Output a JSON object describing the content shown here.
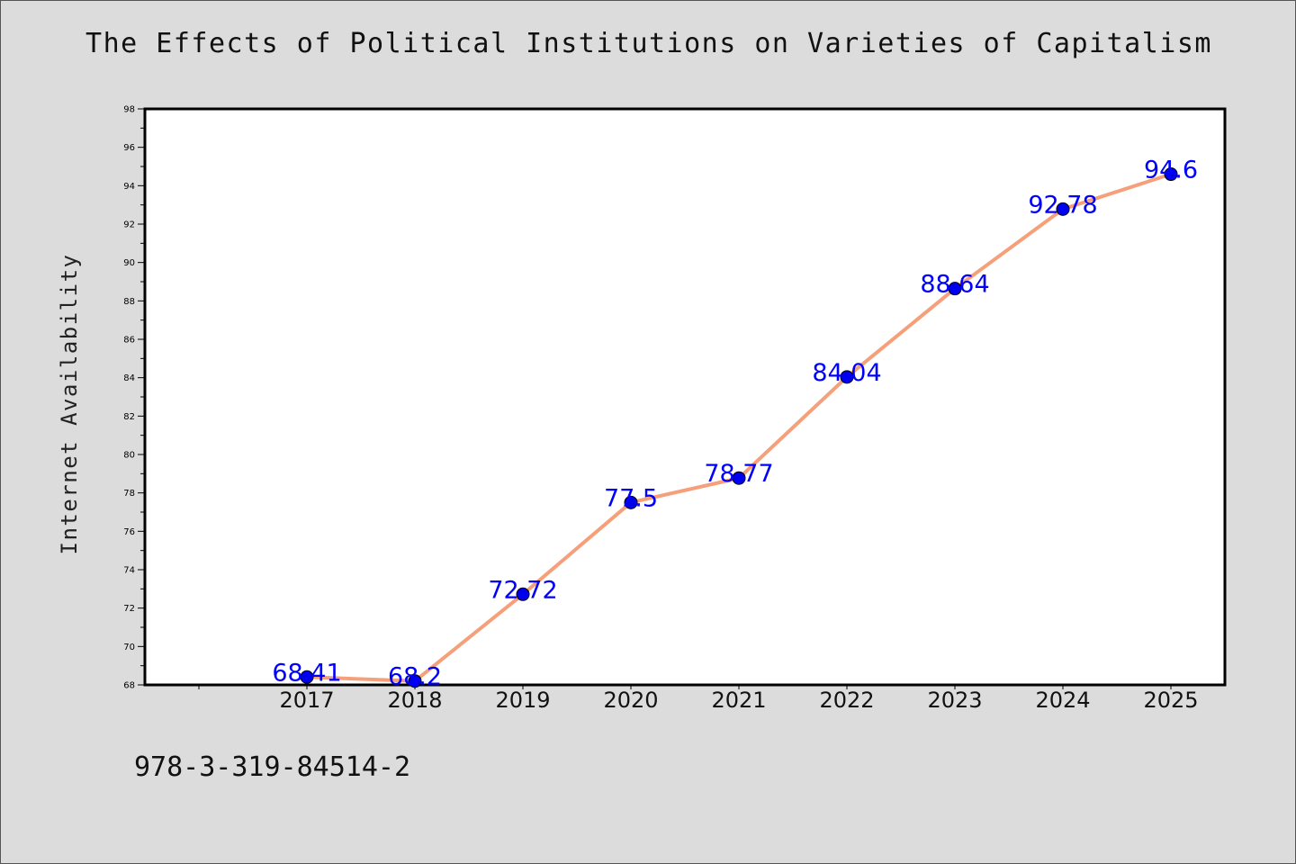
{
  "chart_data": {
    "type": "line",
    "title": "The Effects of Political Institutions on Varieties of Capitalism",
    "xlabel": "",
    "ylabel": "Internet Availability",
    "categories": [
      "2017",
      "2018",
      "2019",
      "2020",
      "2021",
      "2022",
      "2023",
      "2024",
      "2025"
    ],
    "series": [
      {
        "values": [
          68.41,
          68.2,
          72.72,
          77.5,
          78.77,
          84.04,
          88.64,
          92.78,
          94.6
        ],
        "data_labels": [
          "68.41",
          "68.2",
          "72.72",
          "77.5",
          "78.77",
          "84.04",
          "88.64",
          "92.78",
          "94.6"
        ]
      }
    ],
    "ylim": [
      68,
      98
    ],
    "yticks": [
      "68",
      "70",
      "72",
      "74",
      "76",
      "78",
      "80",
      "82",
      "84",
      "86",
      "88",
      "90",
      "92",
      "94",
      "96",
      "98"
    ],
    "grid": false,
    "legend": "none",
    "colors": {
      "line": "#f5a07a",
      "marker": "#0000ee",
      "data_label": "#0000ff",
      "background": "#dcdcdc",
      "plot_background": "#ffffff"
    }
  },
  "footer": {
    "isbn": "978-3-319-84514-2"
  }
}
